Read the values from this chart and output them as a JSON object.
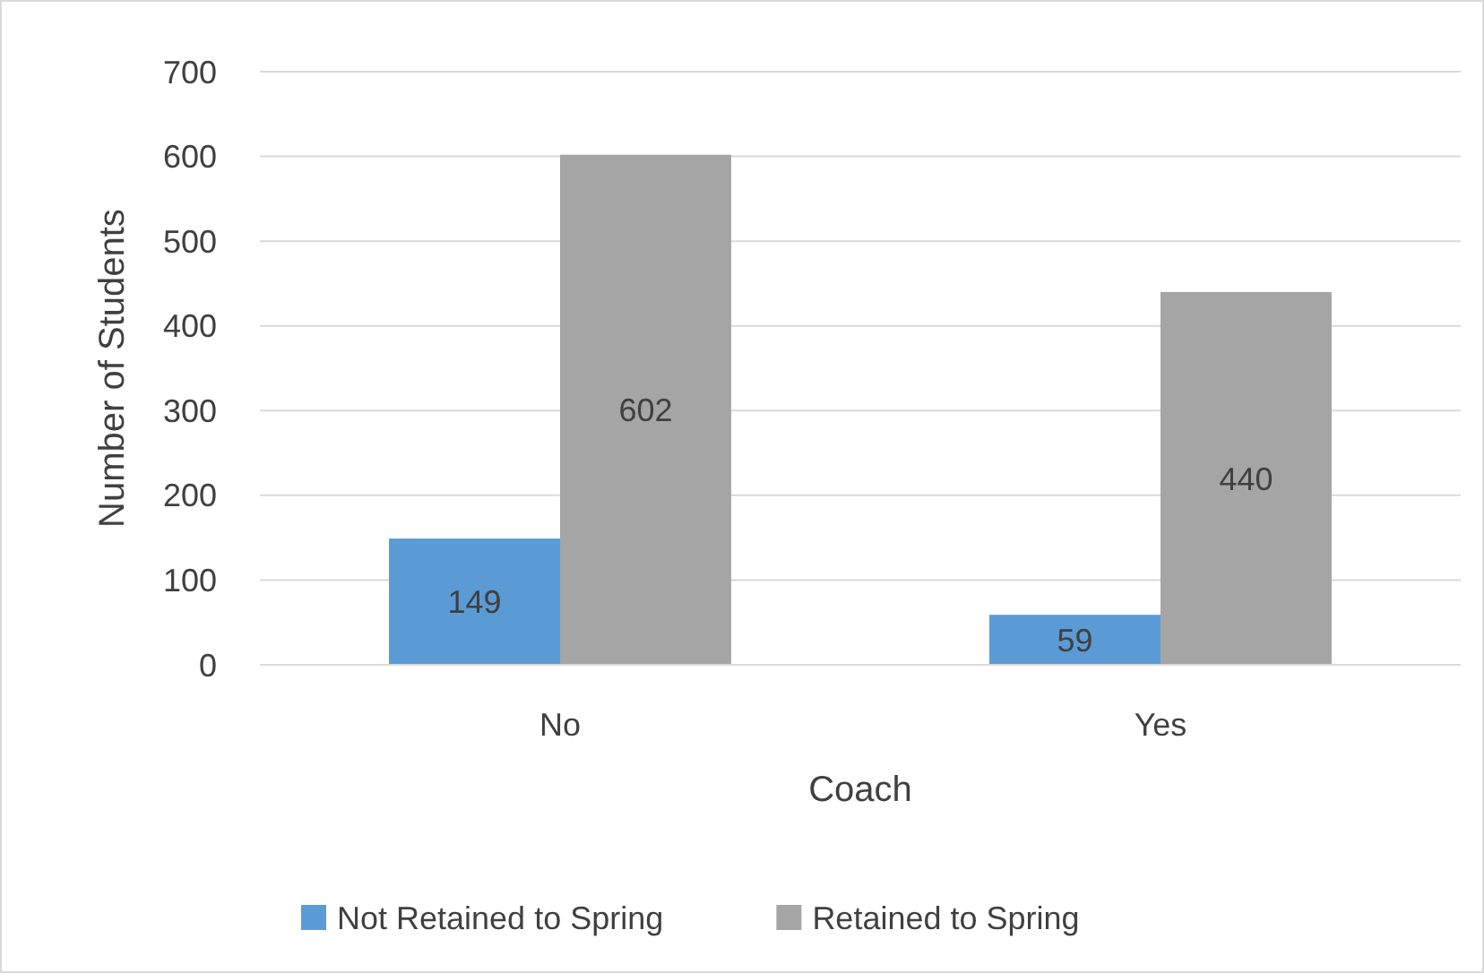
{
  "chart_data": {
    "type": "bar",
    "xlabel": "Coach",
    "ylabel": "Number of Students",
    "categories": [
      "No",
      "Yes"
    ],
    "series": [
      {
        "name": "Not Retained to Spring",
        "color": "#5b9bd5",
        "values": [
          149,
          59
        ]
      },
      {
        "name": "Retained to Spring",
        "color": "#a5a5a5",
        "values": [
          602,
          440
        ]
      }
    ],
    "ylim": [
      0,
      700
    ],
    "yticks": [
      0,
      100,
      200,
      300,
      400,
      500,
      600,
      700
    ],
    "grid": "y",
    "legend": "bottom",
    "data_labels": true
  }
}
